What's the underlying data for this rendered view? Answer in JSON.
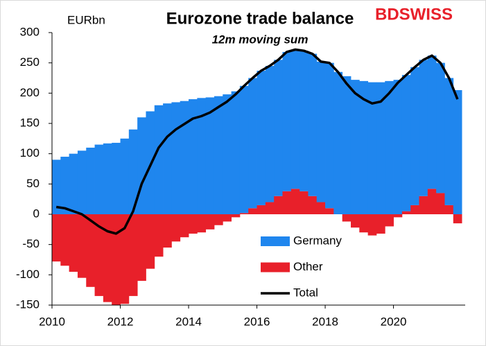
{
  "chart_data": {
    "type": "stacked-bar-line",
    "title": "Eurozone trade balance",
    "subtitle": "12m moving sum",
    "y_label": "EURbn",
    "logo": "BDSWISS",
    "x": [
      2010,
      2010.25,
      2010.5,
      2010.75,
      2011,
      2011.25,
      2011.5,
      2011.75,
      2012,
      2012.25,
      2012.5,
      2012.75,
      2013,
      2013.25,
      2013.5,
      2013.75,
      2014,
      2014.25,
      2014.5,
      2014.75,
      2015,
      2015.25,
      2015.5,
      2015.75,
      2016,
      2016.25,
      2016.5,
      2016.75,
      2017,
      2017.25,
      2017.5,
      2017.75,
      2018,
      2018.25,
      2018.5,
      2018.75,
      2019,
      2019.25,
      2019.5,
      2019.75,
      2020,
      2020.25,
      2020.5,
      2020.75,
      2021,
      2021.25,
      2021.5,
      2021.75
    ],
    "series": [
      {
        "name": "Germany",
        "color": "#1f86ee",
        "values": [
          90,
          95,
          100,
          105,
          110,
          115,
          117,
          118,
          125,
          140,
          160,
          170,
          180,
          183,
          185,
          187,
          190,
          192,
          193,
          195,
          198,
          203,
          210,
          215,
          222,
          225,
          225,
          230,
          230,
          232,
          235,
          232,
          240,
          235,
          228,
          222,
          220,
          218,
          218,
          220,
          222,
          225,
          228,
          225,
          220,
          215,
          210,
          205
        ]
      },
      {
        "name": "Other",
        "color": "#e8202a",
        "values": [
          -78,
          -85,
          -95,
          -105,
          -120,
          -135,
          -145,
          -150,
          -148,
          -135,
          -110,
          -90,
          -70,
          -55,
          -45,
          -38,
          -32,
          -30,
          -25,
          -18,
          -12,
          -5,
          2,
          10,
          15,
          20,
          30,
          38,
          42,
          38,
          30,
          20,
          10,
          0,
          -12,
          -22,
          -30,
          -35,
          -32,
          -20,
          -5,
          5,
          15,
          30,
          42,
          35,
          15,
          -15
        ]
      },
      {
        "name": "Total",
        "color": "#000000",
        "values": [
          12,
          10,
          5,
          0,
          -10,
          -20,
          -28,
          -32,
          -23,
          5,
          50,
          80,
          110,
          128,
          140,
          149,
          158,
          162,
          168,
          177,
          186,
          198,
          212,
          225,
          237,
          245,
          255,
          268,
          272,
          270,
          265,
          252,
          250,
          235,
          216,
          200,
          190,
          183,
          186,
          200,
          217,
          230,
          243,
          255,
          262,
          250,
          225,
          190
        ]
      }
    ],
    "xlim": [
      2010,
      2022.1
    ],
    "xticks": [
      2010,
      2012,
      2014,
      2016,
      2018,
      2020
    ],
    "ylim": [
      -150,
      300
    ],
    "yticks": [
      -150,
      -100,
      -50,
      0,
      50,
      100,
      150,
      200,
      250,
      300
    ]
  }
}
